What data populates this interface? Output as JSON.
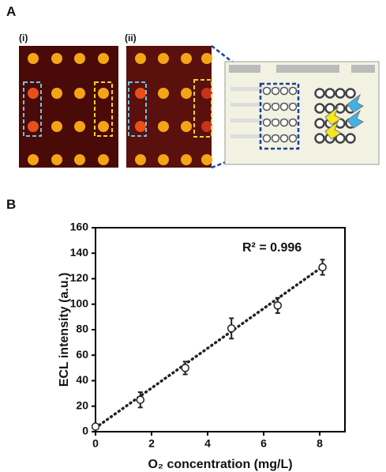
{
  "panels": {
    "a": "A",
    "b": "B",
    "i": "(i)",
    "ii": "(ii)"
  },
  "chart_data": {
    "type": "scatter",
    "x": [
      0,
      1.6,
      3.2,
      4.85,
      6.5,
      8.1
    ],
    "values": [
      4,
      25,
      50,
      81,
      99,
      129
    ],
    "errors": [
      2,
      6,
      5,
      8,
      6,
      6
    ],
    "fit": {
      "x": [
        0,
        8.2
      ],
      "values": [
        3,
        131
      ]
    },
    "xlabel": "O₂ concentration (mg/L)",
    "ylabel": "ECL intensity (a.u.)",
    "annotation": "R² = 0.996",
    "xlim": [
      0,
      8.9
    ],
    "ylim": [
      0,
      160
    ],
    "xticks": [
      0,
      2,
      4,
      6,
      8
    ],
    "yticks": [
      0,
      20,
      40,
      60,
      80,
      100,
      120,
      140,
      160
    ]
  }
}
